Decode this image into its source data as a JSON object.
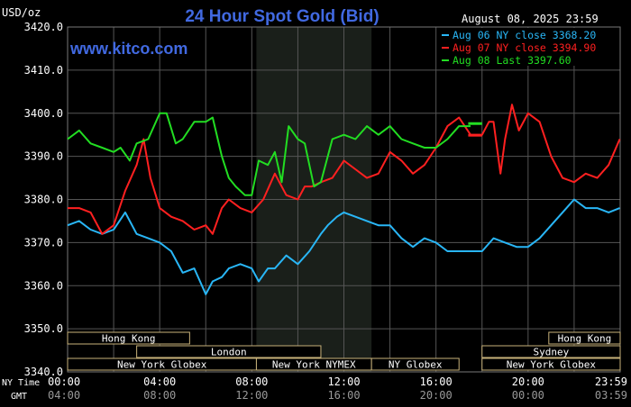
{
  "header": {
    "units": "USD/oz",
    "title": "24 Hour Spot Gold (Bid)",
    "timestamp": "August 08, 2025 23:59",
    "brand": "www.kitco.com"
  },
  "colors": {
    "background": "#000000",
    "grid": "#555555",
    "title": "#4169e1",
    "brand": "#4169e1",
    "text": "#ffffff",
    "nymex_shade": "#1a1f1a",
    "session_box_fill": "#000000",
    "session_box_stroke": "#c8b27a",
    "session_text": "#ffffff"
  },
  "legend": [
    {
      "label": "Aug 06 NY close 3368.20",
      "color": "#29b6f6"
    },
    {
      "label": "Aug 07 NY close 3394.90",
      "color": "#ff2020"
    },
    {
      "label": "Aug 08 Last 3397.60",
      "color": "#22dd22"
    }
  ],
  "time_axis": {
    "ny_label": "NY Time",
    "gmt_label": "GMT",
    "ny_ticks": [
      "00:00",
      "04:00",
      "08:00",
      "12:00",
      "16:00",
      "20:00",
      "23:59"
    ],
    "gmt_ticks": [
      "04:00",
      "08:00",
      "12:00",
      "16:00",
      "20:00",
      "00:00",
      "03:59"
    ]
  },
  "sessions": [
    {
      "label": "Hong Kong",
      "row": 0,
      "start": 0,
      "end": 5.3
    },
    {
      "label": "London",
      "row": 1,
      "start": 3.0,
      "end": 11.0
    },
    {
      "label": "New York Globex",
      "row": 2,
      "start": 0,
      "end": 8.2
    },
    {
      "label": "New York NYMEX",
      "row": 2,
      "start": 8.2,
      "end": 13.2
    },
    {
      "label": "NY Globex",
      "row": 2,
      "start": 13.2,
      "end": 17.0
    },
    {
      "label": "Hong Kong",
      "row": 0,
      "start": 20.9,
      "end": 24
    },
    {
      "label": "Sydney",
      "row": 1,
      "start": 18.0,
      "end": 24
    },
    {
      "label": "New York Globex",
      "row": 2,
      "start": 18.0,
      "end": 24
    }
  ],
  "nymex_hours": [
    8.2,
    13.2
  ],
  "chart_data": {
    "type": "line",
    "title": "24 Hour Spot Gold (Bid)",
    "ylabel": "USD/oz",
    "xlabel": "NY Time",
    "ylim": [
      3340,
      3420
    ],
    "yticks": [
      3340.0,
      3350.0,
      3360.0,
      3370.0,
      3380.0,
      3390.0,
      3400.0,
      3410.0,
      3420.0
    ],
    "ytick_labels": [
      "3340.0",
      "3350.0",
      "3360.0",
      "3370.0",
      "3380.0",
      "3390.0",
      "3400.0",
      "3410.0",
      "3420.0"
    ],
    "xlim": [
      0,
      24
    ],
    "grid": true,
    "legend_position": "top-right",
    "series": [
      {
        "name": "Aug 06 NY close 3368.20",
        "color": "#29b6f6",
        "points": [
          [
            0,
            3374
          ],
          [
            0.5,
            3375
          ],
          [
            1,
            3373
          ],
          [
            1.5,
            3372
          ],
          [
            2,
            3373
          ],
          [
            2.5,
            3377
          ],
          [
            3,
            3372
          ],
          [
            3.5,
            3371
          ],
          [
            4,
            3370
          ],
          [
            4.5,
            3368
          ],
          [
            5,
            3363
          ],
          [
            5.5,
            3364
          ],
          [
            6,
            3358
          ],
          [
            6.3,
            3361
          ],
          [
            6.7,
            3362
          ],
          [
            7,
            3364
          ],
          [
            7.5,
            3365
          ],
          [
            8,
            3364
          ],
          [
            8.3,
            3361
          ],
          [
            8.7,
            3364
          ],
          [
            9,
            3364
          ],
          [
            9.5,
            3367
          ],
          [
            10,
            3365
          ],
          [
            10.5,
            3368
          ],
          [
            11,
            3372
          ],
          [
            11.3,
            3374
          ],
          [
            11.7,
            3376
          ],
          [
            12,
            3377
          ],
          [
            12.5,
            3376
          ],
          [
            13,
            3375
          ],
          [
            13.5,
            3374
          ],
          [
            14,
            3374
          ],
          [
            14.5,
            3371
          ],
          [
            15,
            3369
          ],
          [
            15.5,
            3371
          ],
          [
            16,
            3370
          ],
          [
            16.5,
            3368
          ],
          [
            17,
            3368
          ],
          [
            17.5,
            3368
          ],
          [
            18,
            3368
          ],
          [
            18.5,
            3371
          ],
          [
            19,
            3370
          ],
          [
            19.5,
            3369
          ],
          [
            20,
            3369
          ],
          [
            20.5,
            3371
          ],
          [
            21,
            3374
          ],
          [
            21.5,
            3377
          ],
          [
            22,
            3380
          ],
          [
            22.5,
            3378
          ],
          [
            23,
            3378
          ],
          [
            23.5,
            3377
          ],
          [
            23.98,
            3378
          ]
        ]
      },
      {
        "name": "Aug 07 NY close 3394.90",
        "color": "#ff2020",
        "points": [
          [
            0,
            3378
          ],
          [
            0.5,
            3378
          ],
          [
            1,
            3377
          ],
          [
            1.5,
            3372
          ],
          [
            2,
            3374
          ],
          [
            2.5,
            3382
          ],
          [
            3,
            3388
          ],
          [
            3.3,
            3394
          ],
          [
            3.6,
            3385
          ],
          [
            4,
            3378
          ],
          [
            4.5,
            3376
          ],
          [
            5,
            3375
          ],
          [
            5.5,
            3373
          ],
          [
            6,
            3374
          ],
          [
            6.3,
            3372
          ],
          [
            6.7,
            3378
          ],
          [
            7,
            3380
          ],
          [
            7.5,
            3378
          ],
          [
            8,
            3377
          ],
          [
            8.5,
            3380
          ],
          [
            9,
            3386
          ],
          [
            9.5,
            3381
          ],
          [
            10,
            3380
          ],
          [
            10.3,
            3383
          ],
          [
            10.6,
            3383
          ],
          [
            11,
            3384
          ],
          [
            11.5,
            3385
          ],
          [
            12,
            3389
          ],
          [
            12.5,
            3387
          ],
          [
            13,
            3385
          ],
          [
            13.5,
            3386
          ],
          [
            14,
            3391
          ],
          [
            14.5,
            3389
          ],
          [
            15,
            3386
          ],
          [
            15.5,
            3388
          ],
          [
            16,
            3392
          ],
          [
            16.5,
            3397
          ],
          [
            17,
            3399
          ],
          [
            17.5,
            3395
          ],
          [
            18,
            3395
          ],
          [
            18.3,
            3398
          ],
          [
            18.5,
            3398
          ],
          [
            18.8,
            3386
          ],
          [
            19,
            3394
          ],
          [
            19.3,
            3402
          ],
          [
            19.6,
            3396
          ],
          [
            20,
            3400
          ],
          [
            20.5,
            3398
          ],
          [
            21,
            3390
          ],
          [
            21.5,
            3385
          ],
          [
            22,
            3384
          ],
          [
            22.5,
            3386
          ],
          [
            23,
            3385
          ],
          [
            23.5,
            3388
          ],
          [
            23.98,
            3394
          ]
        ]
      },
      {
        "name": "Aug 08 Last 3397.60",
        "color": "#22dd22",
        "points": [
          [
            0,
            3394
          ],
          [
            0.5,
            3396
          ],
          [
            1,
            3393
          ],
          [
            1.5,
            3392
          ],
          [
            2,
            3391
          ],
          [
            2.3,
            3392
          ],
          [
            2.7,
            3389
          ],
          [
            3,
            3393
          ],
          [
            3.5,
            3394
          ],
          [
            4,
            3400
          ],
          [
            4.3,
            3400
          ],
          [
            4.7,
            3393
          ],
          [
            5,
            3394
          ],
          [
            5.5,
            3398
          ],
          [
            6,
            3398
          ],
          [
            6.3,
            3399
          ],
          [
            6.7,
            3390
          ],
          [
            7,
            3385
          ],
          [
            7.3,
            3383
          ],
          [
            7.7,
            3381
          ],
          [
            8,
            3381
          ],
          [
            8.3,
            3389
          ],
          [
            8.7,
            3388
          ],
          [
            9,
            3391
          ],
          [
            9.3,
            3384
          ],
          [
            9.6,
            3397
          ],
          [
            10,
            3394
          ],
          [
            10.3,
            3393
          ],
          [
            10.7,
            3383
          ],
          [
            11,
            3384
          ],
          [
            11.5,
            3394
          ],
          [
            12,
            3395
          ],
          [
            12.5,
            3394
          ],
          [
            13,
            3397
          ],
          [
            13.5,
            3395
          ],
          [
            14,
            3397
          ],
          [
            14.5,
            3394
          ],
          [
            15,
            3393
          ],
          [
            15.5,
            3392
          ],
          [
            16,
            3392
          ],
          [
            16.5,
            3394
          ],
          [
            17,
            3397
          ],
          [
            17.5,
            3397
          ]
        ]
      }
    ]
  }
}
